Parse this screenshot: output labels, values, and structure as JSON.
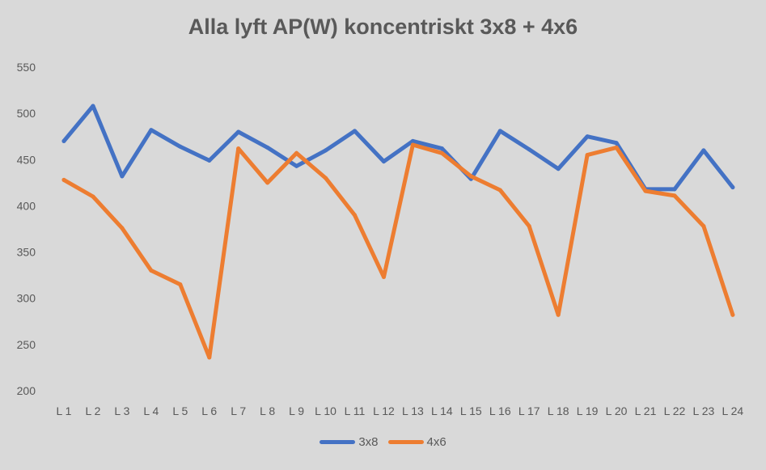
{
  "chart_data": {
    "type": "line",
    "title": "Alla lyft AP(W) koncentriskt 3x8 + 4x6",
    "xlabel": "",
    "ylabel": "",
    "ylim": [
      200,
      550
    ],
    "yticks": [
      "200",
      "250",
      "300",
      "350",
      "400",
      "450",
      "500",
      "550"
    ],
    "categories": [
      "L 1",
      "L 2",
      "L 3",
      "L 4",
      "L 5",
      "L 6",
      "L 7",
      "L 8",
      "L 9",
      "L 10",
      "L 11",
      "L 12",
      "L 13",
      "L 14",
      "L 15",
      "L 16",
      "L 17",
      "L 18",
      "L 19",
      "L 20",
      "L 21",
      "L 22",
      "L 23",
      "L 24"
    ],
    "legend_position": "bottom",
    "grid": false,
    "series": [
      {
        "name": "3x8",
        "color": "#4472c4",
        "values": [
          470,
          508,
          432,
          482,
          464,
          449,
          480,
          463,
          443,
          460,
          481,
          448,
          470,
          462,
          429,
          481,
          461,
          440,
          475,
          468,
          418,
          418,
          460,
          420
        ]
      },
      {
        "name": "4x6",
        "color": "#ed7d31",
        "values": [
          428,
          410,
          376,
          330,
          315,
          236,
          462,
          425,
          457,
          430,
          390,
          323,
          466,
          457,
          432,
          417,
          378,
          282,
          455,
          463,
          416,
          411,
          378,
          282
        ]
      }
    ]
  }
}
